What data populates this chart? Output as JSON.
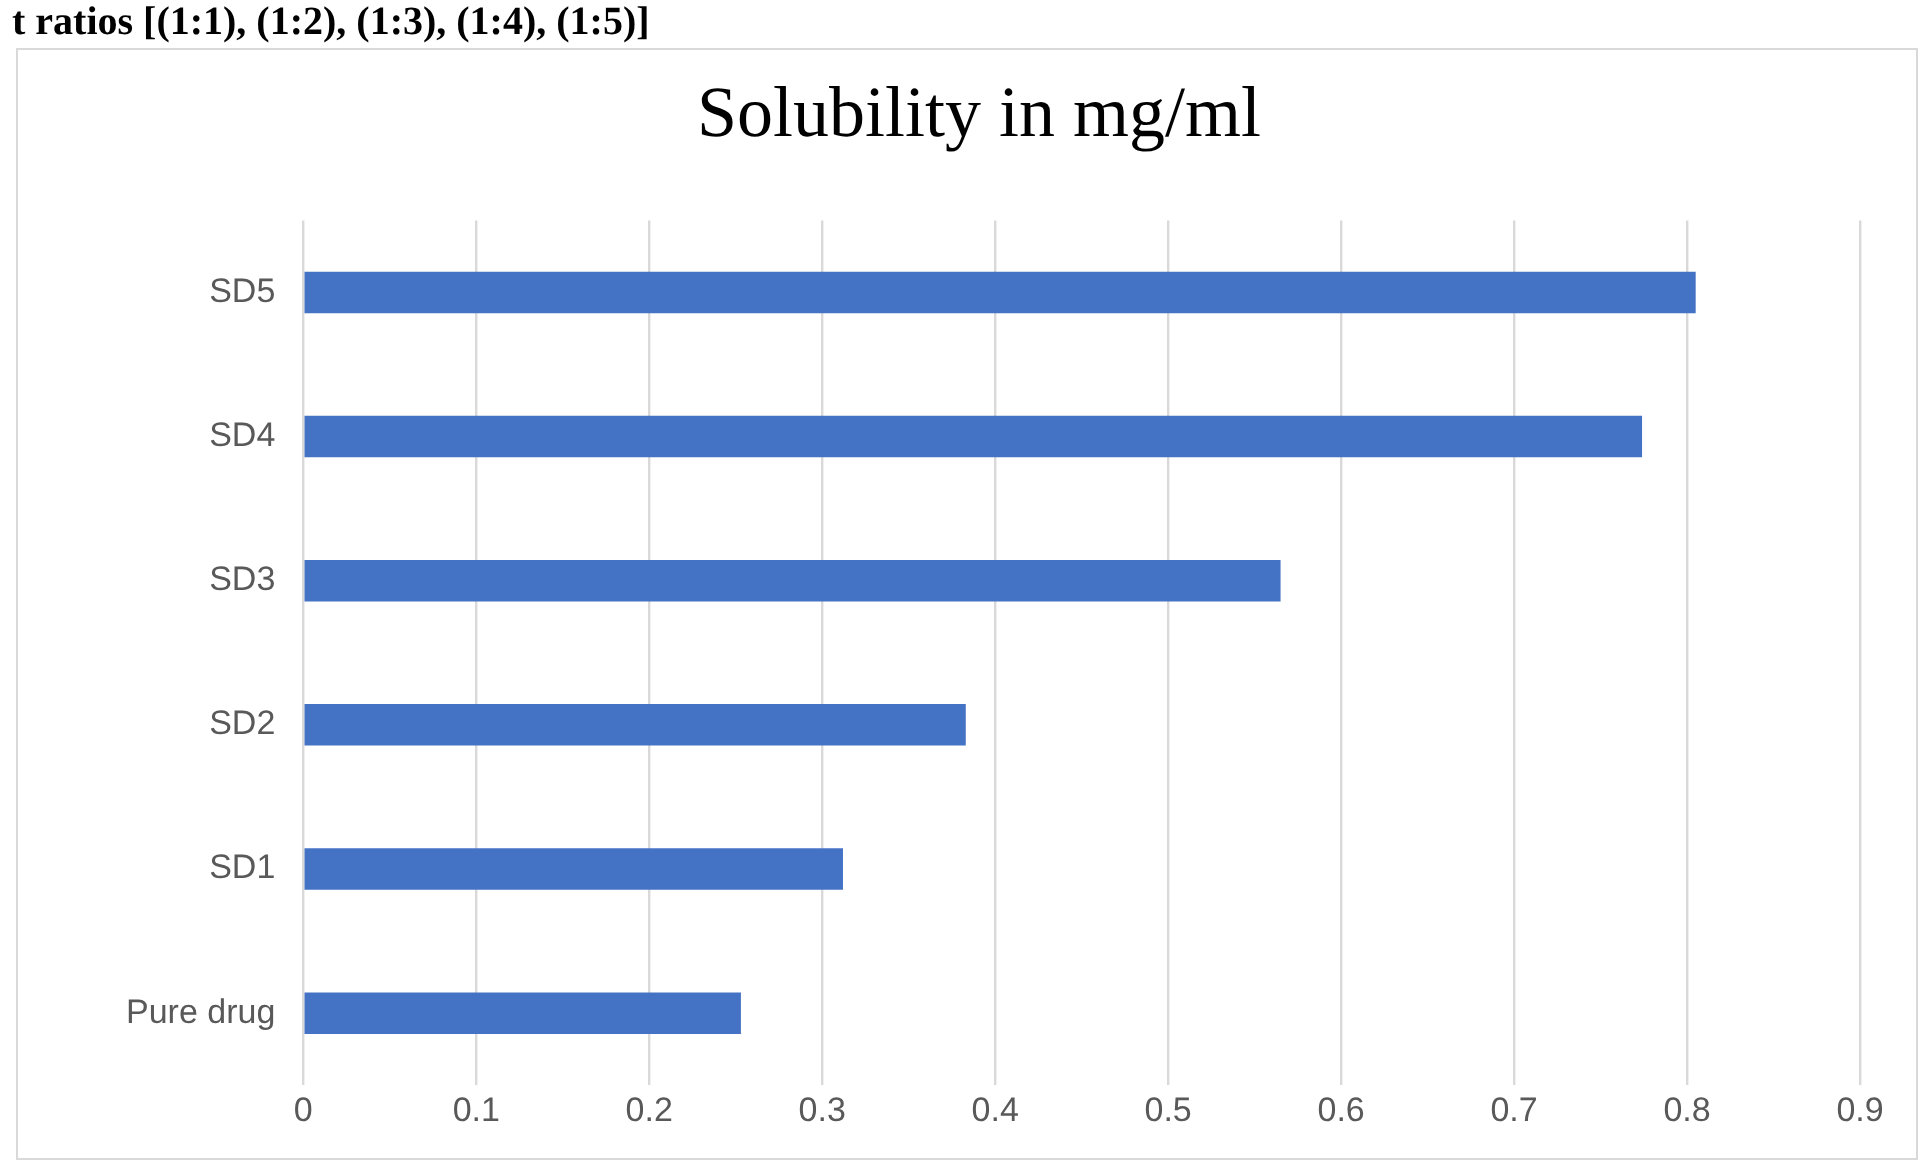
{
  "chart_data": {
    "type": "bar",
    "orientation": "horizontal",
    "title": "Solubility in mg/ml",
    "annotations": [
      "t ratios [(1:1), (1:2), (1:3), (1:4), (1:5)]"
    ],
    "categories": [
      "SD5",
      "SD4",
      "SD3",
      "SD2",
      "SD1",
      "Pure drug"
    ],
    "values": [
      0.805,
      0.774,
      0.565,
      0.383,
      0.312,
      0.253
    ],
    "color": "#4472c4",
    "xlim": [
      0,
      0.9
    ],
    "xticks": [
      0,
      0.1,
      0.2,
      0.3,
      0.4,
      0.5,
      0.6,
      0.7,
      0.8,
      0.9
    ],
    "grid": "x"
  }
}
